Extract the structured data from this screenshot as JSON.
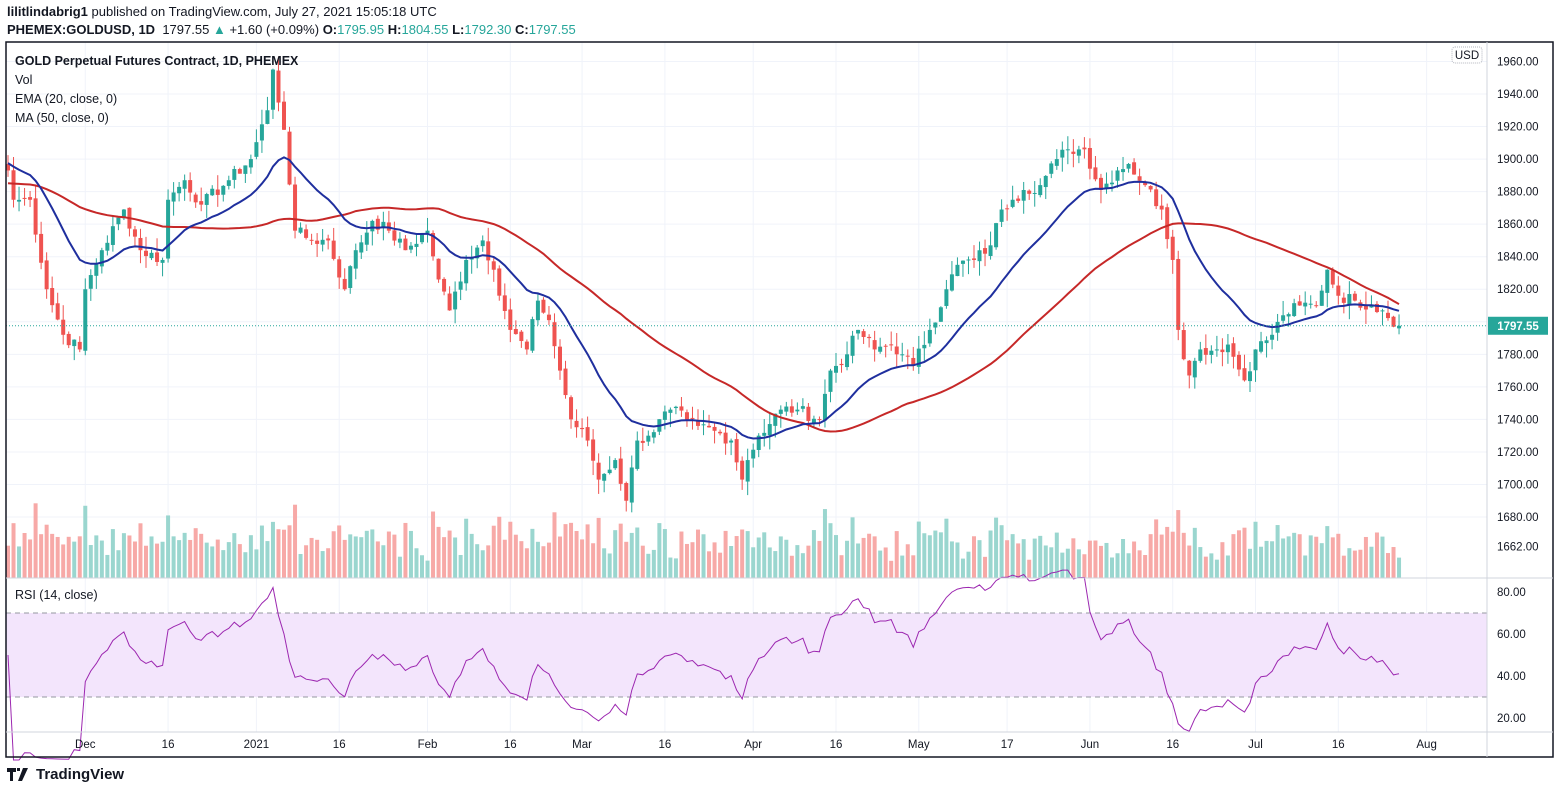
{
  "header": {
    "author": "lilitlindabrig1",
    "published": "published on TradingView.com, July 27, 2021 15:05:18 UTC",
    "symbol": "PHEMEX:GOLDUSD, 1D",
    "last": "1797.55",
    "change": "+1.60 (+0.09%)",
    "o_label": "O:",
    "o": "1795.95",
    "h_label": "H:",
    "h": "1804.55",
    "l_label": "L:",
    "l": "1792.30",
    "c_label": "C:",
    "c": "1797.55"
  },
  "legend": {
    "title": "GOLD Perpetual Futures Contract, 1D, PHEMEX",
    "vol": "Vol",
    "ema": "EMA (20, close, 0)",
    "ma": "MA (50, close, 0)",
    "rsi": "RSI (14, close)"
  },
  "currency": "USD",
  "last_price_label": "1797.55",
  "brand": "TradingView",
  "colors": {
    "up": "#26a69a",
    "down": "#ef5350",
    "ema": "#1f2f9e",
    "ma": "#c62828",
    "rsi": "#9c27b0",
    "rsi_band": "#f3e5fc"
  },
  "chart_data": {
    "type": "candlestick",
    "title": "GOLD Perpetual Futures Contract, 1D, PHEMEX",
    "x_unit": "days since 2020-11-17",
    "close_anchors": [
      [
        0,
        1893
      ],
      [
        1,
        1875
      ],
      [
        4,
        1875
      ],
      [
        7,
        1820
      ],
      [
        10,
        1792
      ],
      [
        13,
        1783
      ],
      [
        14,
        1820
      ],
      [
        17,
        1844
      ],
      [
        21,
        1869
      ],
      [
        24,
        1844
      ],
      [
        28,
        1838
      ],
      [
        29,
        1875
      ],
      [
        32,
        1887
      ],
      [
        35,
        1872
      ],
      [
        40,
        1887
      ],
      [
        44,
        1900
      ],
      [
        47,
        1930
      ],
      [
        48,
        1955
      ],
      [
        50,
        1918
      ],
      [
        52,
        1856
      ],
      [
        55,
        1850
      ],
      [
        58,
        1850
      ],
      [
        61,
        1820
      ],
      [
        63,
        1844
      ],
      [
        66,
        1862
      ],
      [
        69,
        1856
      ],
      [
        72,
        1844
      ],
      [
        76,
        1856
      ],
      [
        78,
        1826
      ],
      [
        80,
        1807
      ],
      [
        83,
        1838
      ],
      [
        86,
        1850
      ],
      [
        88,
        1832
      ],
      [
        91,
        1795
      ],
      [
        94,
        1783
      ],
      [
        96,
        1813
      ],
      [
        98,
        1801
      ],
      [
        100,
        1770
      ],
      [
        102,
        1740
      ],
      [
        105,
        1727
      ],
      [
        107,
        1703
      ],
      [
        110,
        1715
      ],
      [
        112,
        1690
      ],
      [
        114,
        1727
      ],
      [
        116,
        1730
      ],
      [
        120,
        1746
      ],
      [
        123,
        1740
      ],
      [
        125,
        1736
      ],
      [
        128,
        1733
      ],
      [
        131,
        1727
      ],
      [
        133,
        1703
      ],
      [
        134,
        1715
      ],
      [
        136,
        1730
      ],
      [
        140,
        1746
      ],
      [
        143,
        1746
      ],
      [
        147,
        1740
      ],
      [
        149,
        1770
      ],
      [
        152,
        1780
      ],
      [
        154,
        1795
      ],
      [
        157,
        1783
      ],
      [
        160,
        1786
      ],
      [
        162,
        1780
      ],
      [
        164,
        1773
      ],
      [
        167,
        1795
      ],
      [
        170,
        1820
      ],
      [
        172,
        1835
      ],
      [
        175,
        1838
      ],
      [
        178,
        1847
      ],
      [
        180,
        1869
      ],
      [
        182,
        1875
      ],
      [
        184,
        1881
      ],
      [
        187,
        1884
      ],
      [
        190,
        1900
      ],
      [
        192,
        1906
      ],
      [
        195,
        1906
      ],
      [
        198,
        1881
      ],
      [
        201,
        1893
      ],
      [
        203,
        1897
      ],
      [
        206,
        1884
      ],
      [
        209,
        1869
      ],
      [
        211,
        1838
      ],
      [
        212,
        1795
      ],
      [
        214,
        1767
      ],
      [
        216,
        1783
      ],
      [
        219,
        1783
      ],
      [
        221,
        1786
      ],
      [
        224,
        1764
      ],
      [
        226,
        1783
      ],
      [
        229,
        1792
      ],
      [
        231,
        1804
      ],
      [
        234,
        1810
      ],
      [
        237,
        1810
      ],
      [
        239,
        1832
      ],
      [
        241,
        1816
      ],
      [
        244,
        1813
      ],
      [
        247,
        1810
      ],
      [
        249,
        1807
      ],
      [
        252,
        1797.55
      ]
    ],
    "price_ticks": [
      "1960.00",
      "1940.00",
      "1920.00",
      "1900.00",
      "1880.00",
      "1860.00",
      "1840.00",
      "1820.00",
      "1780.00",
      "1760.00",
      "1740.00",
      "1720.00",
      "1700.00",
      "1680.00",
      "1662.00"
    ],
    "rsi_ticks": [
      "80.00",
      "60.00",
      "40.00",
      "20.00"
    ],
    "rsi_bands": [
      30,
      70
    ],
    "x_ticks": [
      [
        "Dec",
        14
      ],
      [
        "16",
        29
      ],
      [
        "2021",
        45
      ],
      [
        "16",
        60
      ],
      [
        "Feb",
        76
      ],
      [
        "16",
        91
      ],
      [
        "Mar",
        104
      ],
      [
        "16",
        119
      ],
      [
        "Apr",
        135
      ],
      [
        "16",
        150
      ],
      [
        "May",
        165
      ],
      [
        "17",
        181
      ],
      [
        "Jun",
        196
      ],
      [
        "16",
        211
      ],
      [
        "Jul",
        226
      ],
      [
        "16",
        241
      ],
      [
        "Aug",
        257
      ]
    ],
    "ylim": [
      1660,
      1960
    ],
    "indicators": [
      "Vol",
      "EMA 20",
      "MA 50",
      "RSI 14"
    ]
  }
}
